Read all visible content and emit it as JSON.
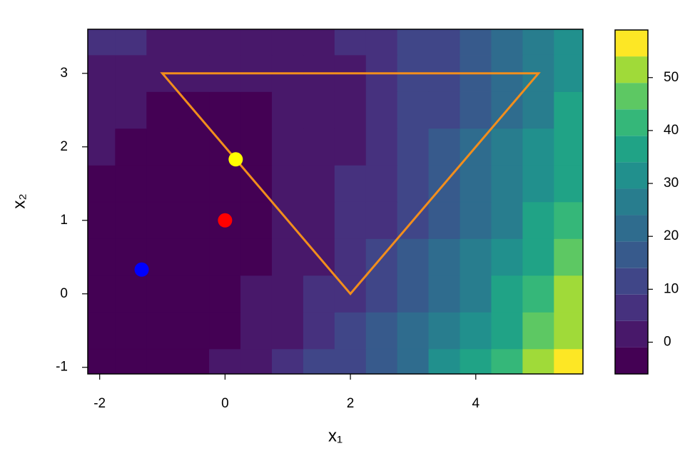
{
  "chart_data": {
    "type": "contour",
    "x_label": "x₁",
    "y_label": "x₂",
    "xlim": [
      -2.19,
      5.71
    ],
    "ylim": [
      -1.09,
      3.6
    ],
    "xticks": [
      -2,
      0,
      2,
      4
    ],
    "yticks": [
      -1,
      0,
      1,
      2,
      3
    ],
    "grid_x": [
      -2,
      -1.5,
      -1,
      -0.5,
      0,
      0.5,
      1,
      1.5,
      2,
      2.5,
      3,
      3.5,
      4,
      4.5,
      5,
      5.5
    ],
    "grid_y": [
      -1,
      -0.5,
      0,
      0.5,
      1,
      1.5,
      2,
      2.5,
      3,
      3.5
    ],
    "z": [
      [
        -3.9,
        -3.6,
        -2.8,
        -1.4,
        0.5,
        3.0,
        6.0,
        9.6,
        13.7,
        18.4,
        23.6,
        29.4,
        35.7,
        42.6,
        50.0,
        58.0
      ],
      [
        -4.5,
        -4.5,
        -3.9,
        -2.8,
        -1.2,
        1.0,
        3.8,
        7.1,
        10.9,
        15.3,
        20.3,
        25.8,
        31.8,
        38.4,
        45.6,
        53.3
      ],
      [
        -4.7,
        -4.9,
        -4.7,
        -3.8,
        -2.5,
        -0.5,
        1.9,
        5.0,
        8.5,
        12.7,
        17.3,
        22.6,
        28.3,
        34.7,
        41.5,
        49.0
      ],
      [
        -4.4,
        -4.9,
        -4.9,
        -4.4,
        -3.3,
        -1.6,
        0.6,
        3.3,
        6.6,
        10.5,
        14.9,
        19.8,
        25.3,
        31.4,
        38.0,
        45.1
      ],
      [
        -3.6,
        -4.4,
        -4.7,
        -4.4,
        -3.6,
        -2.2,
        -0.3,
        2.2,
        5.2,
        8.8,
        12.9,
        17.6,
        22.8,
        28.6,
        34.9,
        41.8
      ],
      [
        -2.4,
        -3.5,
        -4.1,
        -4.1,
        -3.5,
        -2.4,
        -0.8,
        1.4,
        4.2,
        7.5,
        11.3,
        15.7,
        20.7,
        26.2,
        32.2,
        38.8
      ],
      [
        -0.8,
        -2.2,
        -3.0,
        -3.3,
        -3.0,
        -2.2,
        -0.8,
        1.1,
        3.6,
        6.6,
        10.2,
        14.3,
        19.0,
        24.2,
        30.0,
        36.3
      ],
      [
        1.3,
        -0.3,
        -1.4,
        -2.0,
        -2.0,
        -1.4,
        -0.3,
        1.3,
        3.5,
        6.3,
        9.6,
        13.4,
        17.8,
        22.8,
        28.3,
        34.3
      ],
      [
        3.8,
        1.9,
        0.5,
        -0.3,
        -0.6,
        -0.3,
        0.5,
        1.9,
        3.8,
        6.3,
        9.3,
        12.9,
        17.0,
        21.7,
        26.9,
        32.7
      ],
      [
        6.8,
        4.6,
        3.0,
        1.9,
        1.3,
        1.3,
        1.9,
        3.0,
        4.6,
        6.8,
        9.6,
        12.9,
        16.7,
        21.1,
        26.1,
        31.6
      ]
    ],
    "levels": [
      -6,
      -1,
      4,
      9,
      14,
      19,
      24,
      29,
      34,
      39,
      44,
      49,
      54,
      59
    ],
    "colors": [
      "#440154",
      "#48186A",
      "#46317E",
      "#404688",
      "#375A8C",
      "#2F6C8E",
      "#287D8E",
      "#21908D",
      "#20A386",
      "#35B779",
      "#5DC863",
      "#A0DA39",
      "#FDE725"
    ],
    "zticks": [
      0,
      10,
      20,
      30,
      40,
      50
    ],
    "polygon": {
      "x": [
        -1,
        5,
        2
      ],
      "y": [
        3,
        3,
        0
      ],
      "color": "#F28E1C"
    },
    "points": [
      {
        "x": 0,
        "y": 1,
        "color": "#FF0000"
      },
      {
        "x": -1.33,
        "y": 0.33,
        "color": "#0000FF"
      },
      {
        "x": 0.17,
        "y": 1.83,
        "color": "#FFFF00"
      }
    ]
  }
}
